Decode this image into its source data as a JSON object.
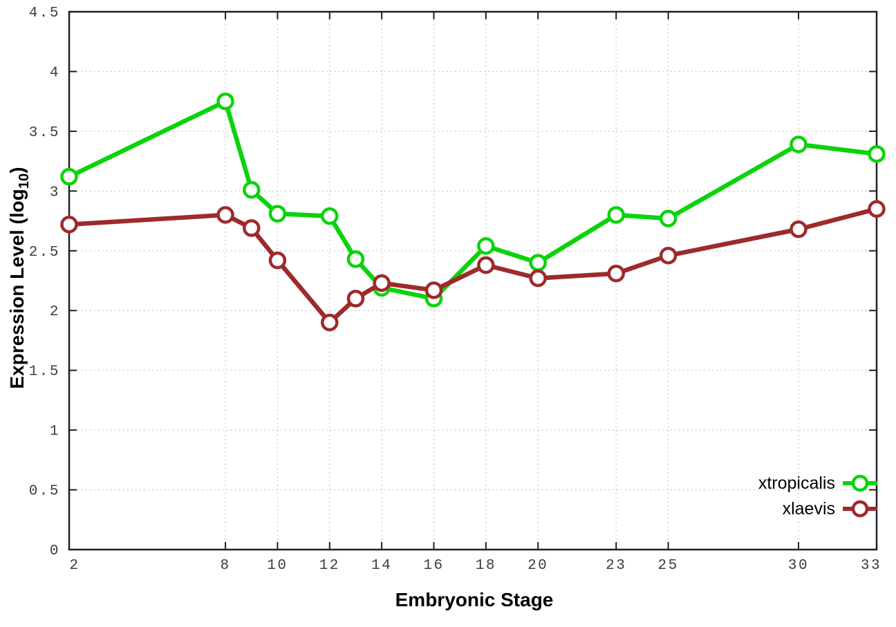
{
  "chart_data": {
    "type": "line",
    "title": "",
    "xlabel": "Embryonic Stage",
    "ylabel_prefix": "Expression Level (log",
    "ylabel_sub": "10",
    "ylabel_suffix": ")",
    "xlim": [
      2,
      33
    ],
    "ylim": [
      0,
      4.5
    ],
    "grid": true,
    "legend_position": "bottom-right",
    "x": [
      2,
      8,
      9,
      10,
      12,
      13,
      14,
      16,
      18,
      20,
      23,
      25,
      30,
      33
    ],
    "xticks": {
      "values": [
        2,
        8,
        10,
        12,
        14,
        16,
        18,
        20,
        23,
        25,
        30,
        33
      ],
      "labels": [
        "2",
        "8",
        "10",
        "12",
        "14",
        "16",
        "18",
        "20",
        "23",
        "25",
        "30",
        "33"
      ]
    },
    "yticks": {
      "values": [
        0,
        0.5,
        1,
        1.5,
        2,
        2.5,
        3,
        3.5,
        4,
        4.5
      ],
      "labels": [
        "0",
        "0.5",
        "1",
        "1.5",
        "2",
        "2.5",
        "3",
        "3.5",
        "4",
        "4.5"
      ]
    },
    "series": [
      {
        "name": "xtropicalis",
        "color": "#0bd30b",
        "marker": "open-circle",
        "values": [
          3.12,
          3.75,
          3.01,
          2.81,
          2.79,
          2.43,
          2.19,
          2.1,
          2.54,
          2.4,
          2.8,
          2.77,
          3.39,
          3.31
        ]
      },
      {
        "name": "xlaevis",
        "color": "#9e2a2b",
        "marker": "open-circle",
        "values": [
          2.72,
          2.8,
          2.69,
          2.42,
          1.9,
          2.1,
          2.23,
          2.17,
          2.38,
          2.27,
          2.31,
          2.46,
          2.68,
          2.85
        ]
      }
    ],
    "colors": {
      "grid": "#b5b5b5",
      "axis": "#1f1f1f",
      "tick_label": "#3c3c3c",
      "background": "#ffffff"
    }
  }
}
